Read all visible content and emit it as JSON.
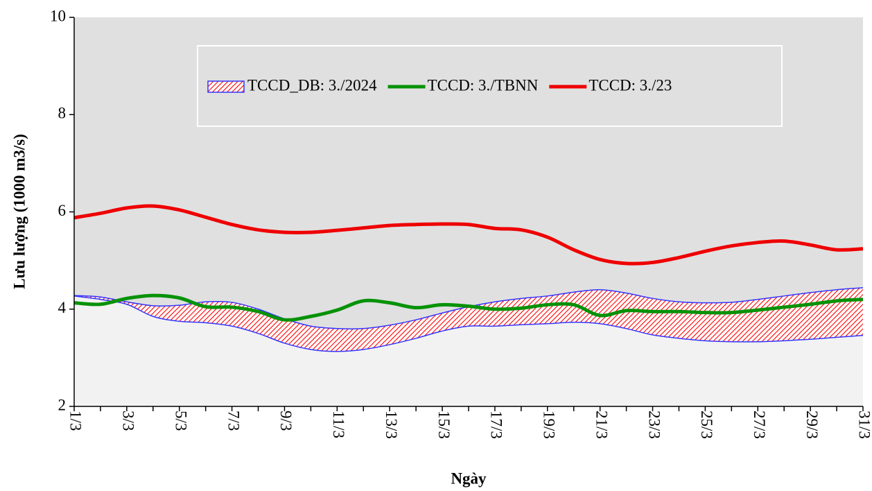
{
  "chart_data": {
    "type": "line",
    "x_label": "Ngày",
    "y_label": "Lưu lượng (1000 m3/s)",
    "categories": [
      "1/3",
      null,
      "3/3",
      null,
      "5/3",
      null,
      "7/3",
      null,
      "9/3",
      null,
      "11/3",
      null,
      "13/3",
      null,
      "15/3",
      null,
      "17/3",
      null,
      "19/3",
      null,
      "21/3",
      null,
      "23/3",
      null,
      "25/3",
      null,
      "27/3",
      null,
      "29/3",
      null,
      "31/3"
    ],
    "ylim": [
      2,
      10
    ],
    "yticks": [
      2,
      4,
      6,
      8,
      10
    ],
    "grid": false,
    "legend": "top",
    "series": [
      {
        "name": "TCCD_DB: 3./2024",
        "type": "band",
        "color": "#ff0000",
        "edge_color": "#3333ff",
        "low": [
          4.27,
          4.2,
          4.1,
          3.85,
          3.75,
          3.72,
          3.65,
          3.5,
          3.3,
          3.17,
          3.13,
          3.17,
          3.27,
          3.4,
          3.55,
          3.65,
          3.65,
          3.68,
          3.7,
          3.73,
          3.7,
          3.6,
          3.47,
          3.4,
          3.35,
          3.33,
          3.33,
          3.35,
          3.38,
          3.42,
          3.46
        ],
        "high": [
          4.28,
          4.25,
          4.15,
          4.07,
          4.08,
          4.15,
          4.14,
          4.0,
          3.8,
          3.65,
          3.6,
          3.6,
          3.67,
          3.78,
          3.92,
          4.05,
          4.15,
          4.22,
          4.27,
          4.35,
          4.4,
          4.33,
          4.22,
          4.15,
          4.13,
          4.14,
          4.2,
          4.27,
          4.34,
          4.4,
          4.44
        ]
      },
      {
        "name": "TCCD: 3./TBNN",
        "color": "#079207",
        "values": [
          4.13,
          4.1,
          4.22,
          4.28,
          4.23,
          4.05,
          4.04,
          3.95,
          3.78,
          3.85,
          3.98,
          4.17,
          4.13,
          4.03,
          4.09,
          4.06,
          4.0,
          4.02,
          4.09,
          4.09,
          3.87,
          3.97,
          3.95,
          3.95,
          3.93,
          3.93,
          3.98,
          4.04,
          4.1,
          4.17,
          4.2
        ]
      },
      {
        "name": "TCCD: 3./23",
        "color": "#ee0000",
        "values": [
          5.88,
          5.97,
          6.08,
          6.12,
          6.04,
          5.89,
          5.74,
          5.63,
          5.58,
          5.58,
          5.62,
          5.67,
          5.72,
          5.74,
          5.75,
          5.74,
          5.66,
          5.63,
          5.48,
          5.22,
          5.02,
          4.94,
          4.96,
          5.06,
          5.19,
          5.3,
          5.37,
          5.4,
          5.32,
          5.22,
          5.24
        ]
      }
    ]
  }
}
